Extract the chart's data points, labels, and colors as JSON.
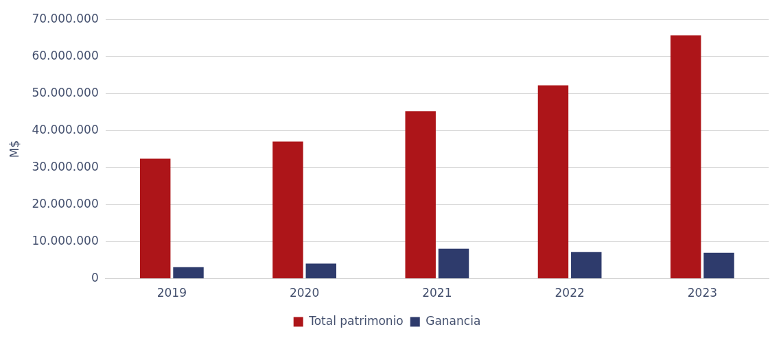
{
  "chart_data": {
    "type": "bar",
    "ylabel": "M$",
    "categories": [
      "2019",
      "2020",
      "2021",
      "2022",
      "2023"
    ],
    "series": [
      {
        "name": "Total patrimonio",
        "color": "#ad1519",
        "values": [
          32400000,
          37000000,
          45200000,
          52200000,
          65700000
        ]
      },
      {
        "name": "Ganancia",
        "color": "#2e3b6c",
        "values": [
          3100000,
          4100000,
          8100000,
          7200000,
          7000000
        ]
      }
    ],
    "ylim": [
      0,
      70000000
    ],
    "yticks": [
      {
        "value": 0,
        "label": "0"
      },
      {
        "value": 10000000,
        "label": "10.000.000"
      },
      {
        "value": 20000000,
        "label": "20.000.000"
      },
      {
        "value": 30000000,
        "label": "30.000.000"
      },
      {
        "value": 40000000,
        "label": "40.000.000"
      },
      {
        "value": 50000000,
        "label": "50.000.000"
      },
      {
        "value": 60000000,
        "label": "60.000.000"
      },
      {
        "value": 70000000,
        "label": "70.000.000"
      }
    ],
    "grid": "y",
    "legend": "bottom"
  }
}
